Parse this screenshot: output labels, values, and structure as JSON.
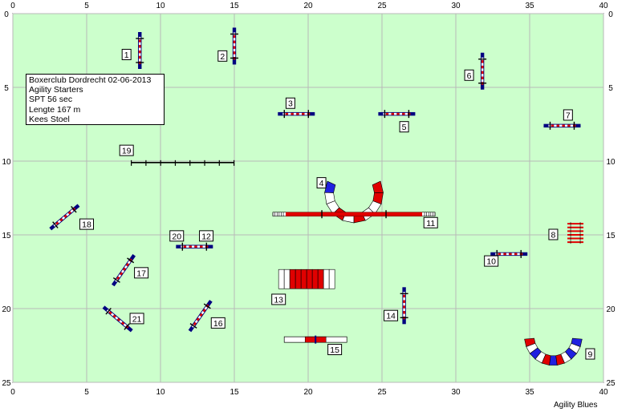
{
  "course_info": {
    "lines": [
      "Boxerclub Dordrecht 02-06-2013",
      "Agility Starters",
      "SPT 56 sec",
      "Lengte 167 m",
      "Kees Stoel"
    ]
  },
  "footer": {
    "brand": "Agility Blues"
  },
  "axes": {
    "x_ticks": [
      0,
      5,
      10,
      15,
      20,
      25,
      30,
      35,
      40
    ],
    "y_ticks": [
      0,
      5,
      10,
      15,
      20,
      25
    ],
    "xlim": [
      0,
      40
    ],
    "ylim": [
      0,
      25
    ],
    "unit": "m",
    "grid": true
  },
  "colors": {
    "field": "#ccffcc",
    "grid": "#b8b8b8",
    "pole_dark": "#000080",
    "pole_red": "#e00000",
    "tunnel_blue": "#2020e0"
  },
  "obstacles": [
    {
      "num": "1",
      "type": "jump",
      "at": [
        8.6,
        2.5
      ],
      "angle": 90,
      "label_at": [
        7.7,
        2.8
      ]
    },
    {
      "num": "2",
      "type": "jump",
      "at": [
        15.0,
        2.2
      ],
      "angle": 90,
      "label_at": [
        14.2,
        2.9
      ]
    },
    {
      "num": "3",
      "type": "jump",
      "at": [
        19.2,
        6.8
      ],
      "angle": 0,
      "label_at": [
        18.8,
        6.1
      ]
    },
    {
      "num": "4",
      "type": "tunnel_curve",
      "at": [
        23.1,
        12.2
      ],
      "angle": 0,
      "label_at": [
        20.9,
        11.5
      ]
    },
    {
      "num": "5",
      "type": "jump",
      "at": [
        26.0,
        6.8
      ],
      "angle": 0,
      "label_at": [
        26.5,
        7.7
      ]
    },
    {
      "num": "6",
      "type": "jump",
      "at": [
        31.8,
        3.9
      ],
      "angle": 90,
      "label_at": [
        30.9,
        4.2
      ]
    },
    {
      "num": "7",
      "type": "jump",
      "at": [
        37.2,
        7.6
      ],
      "angle": 0,
      "label_at": [
        37.6,
        6.9
      ]
    },
    {
      "num": "8",
      "type": "weaves",
      "at": [
        38.1,
        14.9
      ],
      "angle": 90,
      "label_at": [
        36.6,
        15.0
      ]
    },
    {
      "num": "9",
      "type": "tunnel_curve",
      "at": [
        36.6,
        21.9
      ],
      "angle": 0,
      "label_at": [
        39.1,
        23.1
      ]
    },
    {
      "num": "10",
      "type": "jump",
      "at": [
        33.6,
        16.3
      ],
      "angle": 0,
      "label_at": [
        32.4,
        16.8
      ]
    },
    {
      "num": "11",
      "type": "dogwalk",
      "at": [
        23.1,
        13.6
      ],
      "angle": 0,
      "label_at": [
        28.3,
        14.2
      ]
    },
    {
      "num": "12",
      "type": "jump",
      "at": [
        12.3,
        15.8
      ],
      "angle": 0,
      "label_at": [
        13.1,
        15.1
      ]
    },
    {
      "num": "13",
      "type": "tunnel",
      "at": [
        19.9,
        18.0
      ],
      "angle": 0,
      "label_at": [
        18.0,
        19.4
      ]
    },
    {
      "num": "14",
      "type": "jump",
      "at": [
        26.5,
        19.8
      ],
      "angle": 90,
      "label_at": [
        25.6,
        20.5
      ]
    },
    {
      "num": "15",
      "type": "tire",
      "at": [
        20.5,
        22.1
      ],
      "angle": 0,
      "label_at": [
        21.8,
        22.8
      ]
    },
    {
      "num": "16",
      "type": "jump",
      "at": [
        12.7,
        20.5
      ],
      "angle": -55,
      "label_at": [
        13.9,
        21.0
      ]
    },
    {
      "num": "17",
      "type": "jump",
      "at": [
        7.5,
        17.4
      ],
      "angle": -55,
      "label_at": [
        8.7,
        17.6
      ]
    },
    {
      "num": "18",
      "type": "jump",
      "at": [
        3.5,
        13.8
      ],
      "angle": -40,
      "label_at": [
        5.0,
        14.3
      ]
    },
    {
      "num": "19",
      "type": "long_jump",
      "at": [
        11.5,
        10.1
      ],
      "angle": 0,
      "label_at": [
        7.7,
        9.3
      ]
    },
    {
      "num": "20",
      "type": "number_only",
      "at": [
        11.1,
        15.1
      ],
      "angle": 0,
      "label_at": [
        11.1,
        15.1
      ]
    },
    {
      "num": "21",
      "type": "jump",
      "at": [
        7.1,
        20.7
      ],
      "angle": 40,
      "label_at": [
        8.4,
        20.7
      ]
    }
  ]
}
